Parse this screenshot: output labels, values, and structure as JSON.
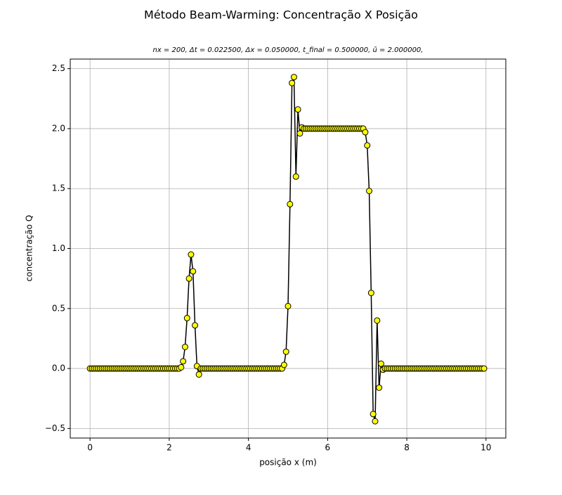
{
  "chart_data": {
    "type": "line",
    "title": "Método Beam-Warming: Concentração X Posição",
    "subtitle": "nx = 200, Δt = 0.022500, Δx = 0.050000, t_final = 0.500000, ū = 2.000000,",
    "xlabel": "posição x (m)",
    "ylabel": "concentração Q",
    "color": "#000000",
    "marker_color": "#ffff00",
    "grid": true,
    "xlim": [
      -0.5,
      10.5
    ],
    "ylim": [
      -0.58,
      2.58
    ],
    "xticks": [
      0,
      2,
      4,
      6,
      8,
      10
    ],
    "yticks": [
      {
        "value": -0.5,
        "label": "−0.5"
      },
      {
        "value": 0,
        "label": "0.0"
      },
      {
        "value": 0.5,
        "label": "0.5"
      },
      {
        "value": 1,
        "label": "1.0"
      },
      {
        "value": 1.5,
        "label": "1.5"
      },
      {
        "value": 2,
        "label": "2.0"
      },
      {
        "value": 2.5,
        "label": "2.5"
      }
    ],
    "x": [
      0,
      0.05,
      0.1,
      0.15,
      0.2,
      0.25,
      0.3,
      0.35,
      0.4,
      0.45,
      0.5,
      0.55,
      0.6,
      0.65,
      0.7,
      0.75,
      0.8,
      0.85,
      0.9,
      0.95,
      1,
      1.05,
      1.1,
      1.15,
      1.2,
      1.25,
      1.3,
      1.35,
      1.4,
      1.45,
      1.5,
      1.55,
      1.6,
      1.65,
      1.7,
      1.75,
      1.8,
      1.85,
      1.9,
      1.95,
      2,
      2.05,
      2.1,
      2.15,
      2.2,
      2.25,
      2.3,
      2.35,
      2.4,
      2.45,
      2.5,
      2.55,
      2.6,
      2.65,
      2.7,
      2.75,
      2.8,
      2.85,
      2.9,
      2.95,
      3,
      3.05,
      3.1,
      3.15,
      3.2,
      3.25,
      3.3,
      3.35,
      3.4,
      3.45,
      3.5,
      3.55,
      3.6,
      3.65,
      3.7,
      3.75,
      3.8,
      3.85,
      3.9,
      3.95,
      4,
      4.05,
      4.1,
      4.15,
      4.2,
      4.25,
      4.3,
      4.35,
      4.4,
      4.45,
      4.5,
      4.55,
      4.6,
      4.65,
      4.7,
      4.75,
      4.8,
      4.85,
      4.9,
      4.95,
      5,
      5.05,
      5.1,
      5.15,
      5.2,
      5.25,
      5.3,
      5.35,
      5.4,
      5.45,
      5.5,
      5.55,
      5.6,
      5.65,
      5.7,
      5.75,
      5.8,
      5.85,
      5.9,
      5.95,
      6,
      6.05,
      6.1,
      6.15,
      6.2,
      6.25,
      6.3,
      6.35,
      6.4,
      6.45,
      6.5,
      6.55,
      6.6,
      6.65,
      6.7,
      6.75,
      6.8,
      6.85,
      6.9,
      6.95,
      7,
      7.05,
      7.1,
      7.15,
      7.2,
      7.25,
      7.3,
      7.35,
      7.4,
      7.45,
      7.5,
      7.55,
      7.6,
      7.65,
      7.7,
      7.75,
      7.8,
      7.85,
      7.9,
      7.95,
      8,
      8.05,
      8.1,
      8.15,
      8.2,
      8.25,
      8.3,
      8.35,
      8.4,
      8.45,
      8.5,
      8.55,
      8.6,
      8.65,
      8.7,
      8.75,
      8.8,
      8.85,
      8.9,
      8.95,
      9,
      9.05,
      9.1,
      9.15,
      9.2,
      9.25,
      9.3,
      9.35,
      9.4,
      9.45,
      9.5,
      9.55,
      9.6,
      9.65,
      9.7,
      9.75,
      9.8,
      9.85,
      9.9,
      9.95
    ],
    "values": [
      0,
      0,
      0,
      0,
      0,
      0,
      0,
      0,
      0,
      0,
      0,
      0,
      0,
      0,
      0,
      0,
      0,
      0,
      0,
      0,
      0,
      0,
      0,
      0,
      0,
      0,
      0,
      0,
      0,
      0,
      0,
      0,
      0,
      0,
      0,
      0,
      0,
      0,
      0,
      0,
      0,
      0,
      0,
      0,
      0,
      0,
      0.01,
      0.06,
      0.18,
      0.42,
      0.75,
      0.95,
      0.81,
      0.36,
      0.02,
      -0.05,
      0,
      0,
      0,
      0,
      0,
      0,
      0,
      0,
      0,
      0,
      0,
      0,
      0,
      0,
      0,
      0,
      0,
      0,
      0,
      0,
      0,
      0,
      0,
      0,
      0,
      0,
      0,
      0,
      0,
      0,
      0,
      0,
      0,
      0,
      0,
      0,
      0,
      0,
      0,
      0,
      0,
      0,
      0.03,
      0.14,
      0.52,
      1.37,
      2.38,
      2.43,
      1.6,
      2.16,
      1.96,
      2.01,
      2,
      2,
      2,
      2,
      2,
      2,
      2,
      2,
      2,
      2,
      2,
      2,
      2,
      2,
      2,
      2,
      2,
      2,
      2,
      2,
      2,
      2,
      2,
      2,
      2,
      2,
      2,
      2,
      2,
      2,
      2,
      1.97,
      1.86,
      1.48,
      0.63,
      -0.38,
      -0.44,
      0.4,
      -0.16,
      0.04,
      -0.01,
      0,
      0,
      0,
      0,
      0,
      0,
      0,
      0,
      0,
      0,
      0,
      0,
      0,
      0,
      0,
      0,
      0,
      0,
      0,
      0,
      0,
      0,
      0,
      0,
      0,
      0,
      0,
      0,
      0,
      0,
      0,
      0,
      0,
      0,
      0,
      0,
      0,
      0,
      0,
      0,
      0,
      0,
      0,
      0,
      0,
      0,
      0,
      0,
      0,
      0,
      0
    ]
  }
}
